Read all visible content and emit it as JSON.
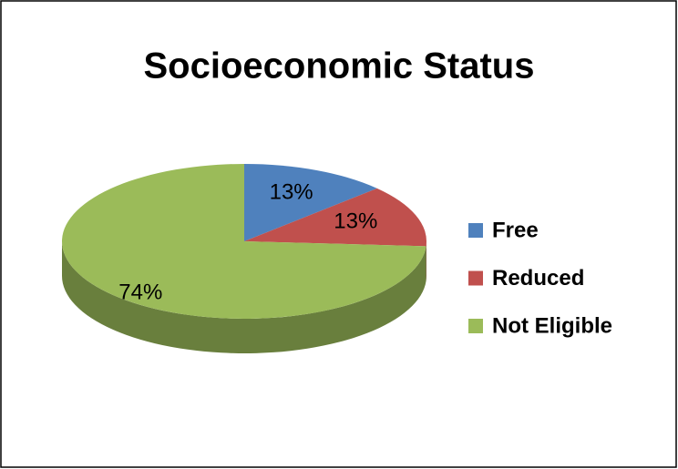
{
  "chart_data": {
    "type": "pie",
    "title": "Socioeconomic Status",
    "categories": [
      "Free",
      "Reduced",
      "Not Eligible"
    ],
    "values": [
      13,
      13,
      74
    ],
    "value_labels": [
      "13%",
      "13%",
      "74%"
    ],
    "colors": [
      "#4f81bd",
      "#c0504d",
      "#9bbb59"
    ],
    "legend": "right"
  }
}
